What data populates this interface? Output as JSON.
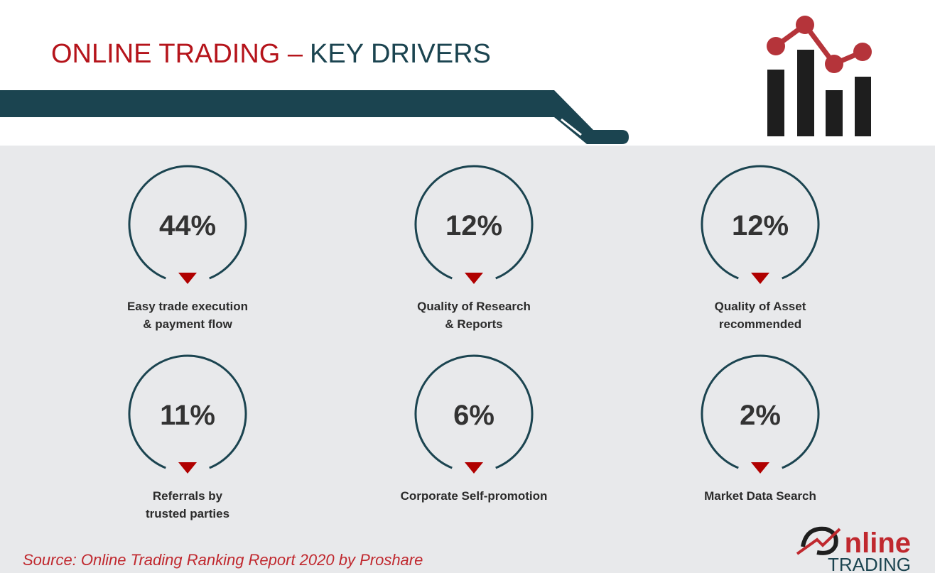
{
  "header": {
    "title_part1": "ONLINE TRADING –",
    "title_part2": "KEY DRIVERS"
  },
  "drivers": [
    {
      "value": "44%",
      "label": [
        "Easy trade execution",
        "& payment flow"
      ]
    },
    {
      "value": "12%",
      "label": [
        "Quality of Research",
        "& Reports"
      ]
    },
    {
      "value": "12%",
      "label": [
        "Quality of Asset",
        "recommended"
      ]
    },
    {
      "value": "11%",
      "label": [
        "Referrals by",
        "trusted parties"
      ]
    },
    {
      "value": "6%",
      "label": [
        "Corporate Self-promotion"
      ]
    },
    {
      "value": "2%",
      "label": [
        "Market Data Search"
      ]
    }
  ],
  "source": "Source: Online Trading Ranking Report 2020 by Proshare",
  "logo": {
    "line1": "nline",
    "line2": "TRADING"
  }
}
